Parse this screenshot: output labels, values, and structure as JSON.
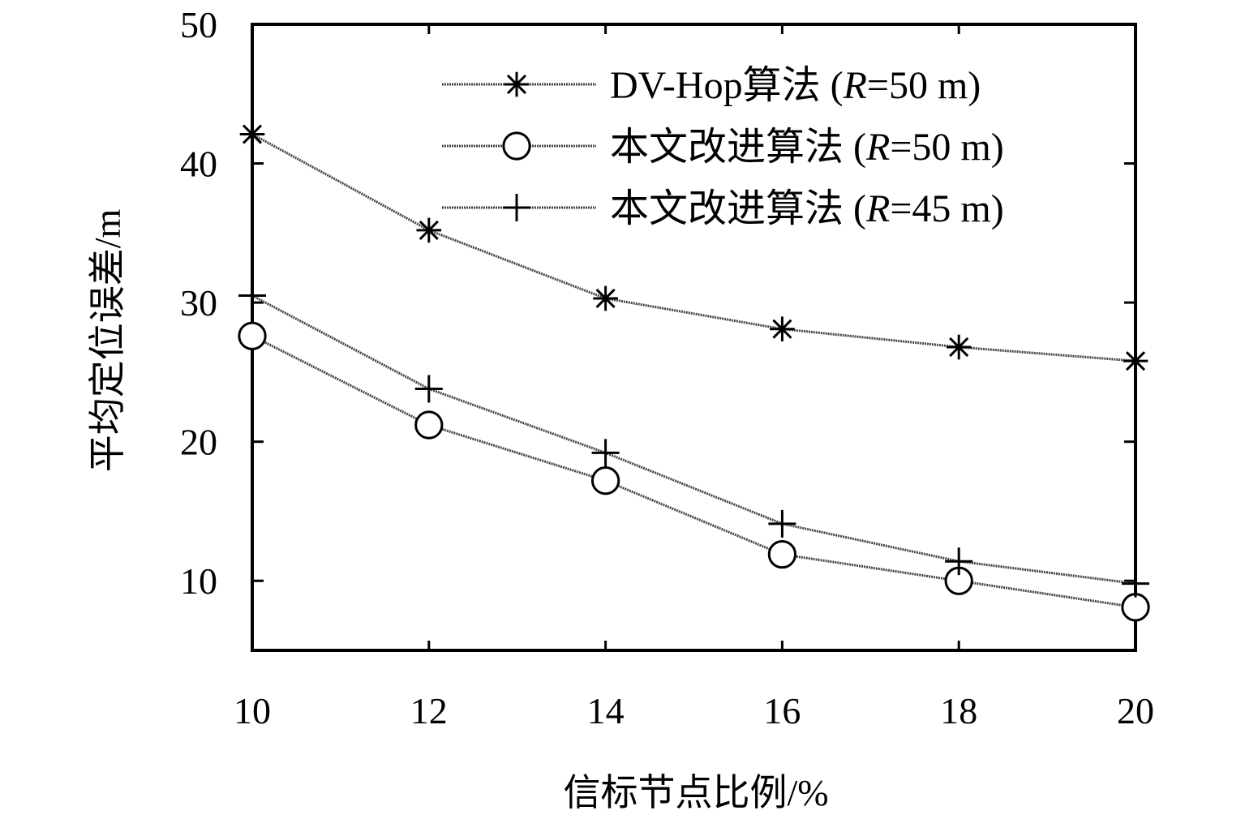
{
  "chart_data": {
    "type": "line",
    "xlabel": "信标节点比例/%",
    "ylabel": "平均定位误差/m",
    "x": [
      10,
      12,
      14,
      16,
      18,
      20
    ],
    "xlim": [
      10,
      20
    ],
    "ylim": [
      5,
      50
    ],
    "xticks": [
      "10",
      "12",
      "14",
      "16",
      "18",
      "20"
    ],
    "yticks": [
      "10",
      "20",
      "30",
      "40",
      "50"
    ],
    "grid": false,
    "legend_position": "top-right",
    "series": [
      {
        "name": "DV-Hop算法 (R=50 m)",
        "name_main": "DV-Hop算法 (",
        "name_var": "R",
        "name_tail": "=50 m)",
        "marker": "asterisk",
        "values": [
          42.1,
          35.2,
          30.3,
          28.1,
          26.8,
          25.8
        ]
      },
      {
        "name": "本文改进算法 (R=50 m)",
        "name_main": "本文改进算法 (",
        "name_var": "R",
        "name_tail": "=50 m)",
        "marker": "circle",
        "values": [
          27.6,
          21.2,
          17.2,
          11.9,
          10.0,
          8.1
        ]
      },
      {
        "name": "本文改进算法 (R=45 m)",
        "name_main": "本文改进算法 (",
        "name_var": "R",
        "name_tail": "=45 m)",
        "marker": "plus",
        "values": [
          30.5,
          23.8,
          19.2,
          14.1,
          11.4,
          9.8
        ]
      }
    ]
  }
}
